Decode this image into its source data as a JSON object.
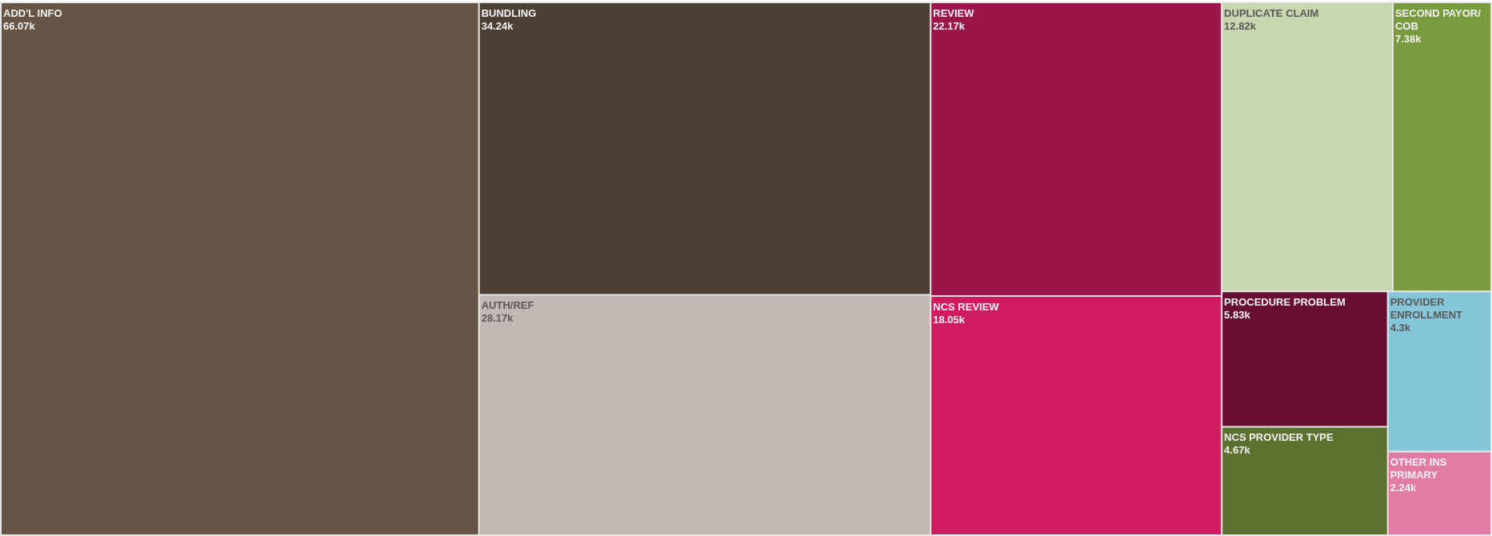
{
  "chart_data": {
    "type": "other",
    "categories": [
      "ADD'L INFO",
      "BUNDLING",
      "AUTH/REF",
      "REVIEW",
      "NCS REVIEW",
      "DUPLICATE CLAIM",
      "SECOND PAYOR/COB",
      "PROCEDURE PROBLEM",
      "NCS PROVIDER TYPE",
      "PROVIDER ENROLLMENT",
      "OTHER INS PRIMARY"
    ],
    "values": [
      66070,
      34240,
      28170,
      22170,
      18050,
      12820,
      7380,
      5830,
      4670,
      4300,
      2240
    ],
    "value_labels": [
      "66.07k",
      "34.24k",
      "28.17k",
      "22.17k",
      "18.05k",
      "12.82k",
      "7.38k",
      "5.83k",
      "4.67k",
      "4.3k",
      "2.24k"
    ],
    "colors": [
      "#665445",
      "#4c4034",
      "#c2b9b4",
      "#9b1548",
      "#cf1b60",
      "#c9d7b1",
      "#7a9a3e",
      "#680e31",
      "#5c7130",
      "#85c7d8",
      "#e27ba4"
    ]
  }
}
